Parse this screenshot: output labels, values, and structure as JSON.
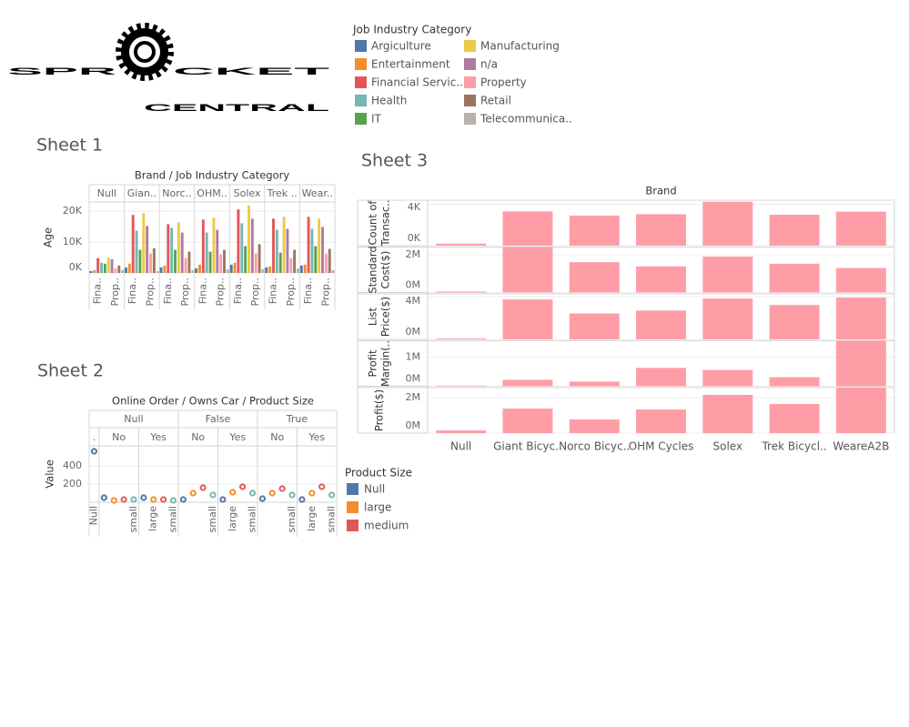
{
  "logo": {
    "left": "SPR",
    "right": "CKET",
    "bottom": "CENTRAL"
  },
  "chart_data": [
    {
      "type": "faceted_bar",
      "title": "Sheet 1",
      "header": "Brand / Job Industry Category",
      "facets": [
        "Null",
        "Gian..",
        "Norc..",
        "OHM..",
        "Solex",
        "Trek ..",
        "Wear.."
      ],
      "bar_labels": [
        null,
        null,
        "Fina..",
        null,
        null,
        null,
        null,
        "Prop..",
        null,
        null
      ],
      "ylabel": "Age",
      "ylim": [
        0,
        23000
      ],
      "yticks": [
        {
          "value": 0,
          "label": "0K"
        },
        {
          "value": 10000,
          "label": "10K"
        },
        {
          "value": 20000,
          "label": "20K"
        }
      ],
      "grid": true,
      "legend_title": "Job Industry Category",
      "series": [
        {
          "name": "Argiculture",
          "color": "#4e79a7",
          "values": [
            600,
            1800,
            1800,
            1500,
            2700,
            1800,
            2400
          ]
        },
        {
          "name": "Entertainment",
          "color": "#f28e2b",
          "values": [
            900,
            3000,
            2400,
            2700,
            3300,
            2100,
            2700
          ]
        },
        {
          "name": "Financial Servic..",
          "color": "#e15759",
          "values": [
            4800,
            18800,
            15800,
            17300,
            20600,
            17600,
            18200
          ]
        },
        {
          "name": "Health",
          "color": "#76b7b2",
          "values": [
            3300,
            13700,
            14600,
            13100,
            16100,
            14000,
            14300
          ]
        },
        {
          "name": "IT",
          "color": "#59a14f",
          "values": [
            3000,
            7500,
            7500,
            6900,
            8700,
            6600,
            8700
          ]
        },
        {
          "name": "Manufacturing",
          "color": "#edc948",
          "values": [
            5000,
            19400,
            16400,
            17900,
            21800,
            18200,
            17600
          ]
        },
        {
          "name": "n/a",
          "color": "#b07aa1",
          "values": [
            4500,
            15200,
            13100,
            14000,
            17600,
            14300,
            14900
          ]
        },
        {
          "name": "Property",
          "color": "#ff9da7",
          "values": [
            1500,
            6300,
            4800,
            6000,
            6300,
            4800,
            6300
          ]
        },
        {
          "name": "Retail",
          "color": "#9c755f",
          "values": [
            2400,
            8000,
            6900,
            7500,
            9300,
            7500,
            7800
          ]
        },
        {
          "name": "Telecommunica..",
          "color": "#bab0ac",
          "values": [
            1000,
            600,
            900,
            1200,
            1200,
            1500,
            900
          ]
        }
      ]
    },
    {
      "type": "dot",
      "title": "Sheet 2",
      "header": "Online Order / Owns Car / Product Size",
      "ylabel": "Value",
      "ylim": [
        0,
        620
      ],
      "yticks": [
        200,
        400
      ],
      "grid": true,
      "point_colors": [
        "#4e79a7",
        "#f28e2b",
        "#e15759",
        "#76b7b2"
      ],
      "legend_title": "Product Size",
      "legend": [
        "Null",
        "large",
        "medium"
      ],
      "groups": [
        {
          "name": "Null",
          "subgroups": [
            {
              "name": ".",
              "categories": [
                "Null"
              ],
              "values": [
                560
              ]
            },
            {
              "name": "No",
              "categories": [
                null,
                null,
                null,
                "small"
              ],
              "values": [
                50,
                20,
                30,
                30
              ]
            },
            {
              "name": "Yes",
              "categories": [
                null,
                "large",
                null,
                "small"
              ],
              "values": [
                50,
                30,
                30,
                20
              ]
            }
          ]
        },
        {
          "name": "False",
          "subgroups": [
            {
              "name": "No",
              "categories": [
                null,
                null,
                null,
                "small"
              ],
              "values": [
                30,
                100,
                160,
                80
              ]
            },
            {
              "name": "Yes",
              "categories": [
                null,
                "large",
                null,
                "small"
              ],
              "values": [
                30,
                110,
                170,
                100
              ]
            }
          ]
        },
        {
          "name": "True",
          "subgroups": [
            {
              "name": "No",
              "categories": [
                null,
                null,
                null,
                "small"
              ],
              "values": [
                40,
                100,
                150,
                80
              ]
            },
            {
              "name": "Yes",
              "categories": [
                null,
                "large",
                null,
                "small"
              ],
              "values": [
                30,
                100,
                170,
                80
              ]
            }
          ]
        }
      ]
    },
    {
      "type": "multi_bar",
      "title": "Sheet 3",
      "header": "Brand",
      "color": "#ff9da7",
      "grid": true,
      "categories": [
        "Null",
        "Giant Bicyc..",
        "Norco Bicyc..",
        "OHM Cycles",
        "Solex",
        "Trek Bicycl..",
        "WeareA2B"
      ],
      "rows": [
        {
          "label": [
            "Count of",
            "Transac.."
          ],
          "values": [
            197,
            3312,
            2910,
            3043,
            4253,
            2990,
            3295
          ],
          "ylim": [
            0,
            4400
          ],
          "yticks": [
            {
              "value": 0,
              "label": "0K"
            },
            {
              "value": 4000,
              "label": "4K"
            }
          ]
        },
        {
          "label": [
            "Standard",
            "Cost($)"
          ],
          "values": [
            50000,
            2400000,
            1600000,
            1380000,
            1900000,
            1520000,
            1290000
          ],
          "ylim": [
            0,
            2400000
          ],
          "yticks": [
            {
              "value": 0,
              "label": "0M"
            },
            {
              "value": 2000000,
              "label": "2M"
            }
          ]
        },
        {
          "label": [
            "List",
            "Price($)"
          ],
          "values": [
            90000,
            3740000,
            2430000,
            2700000,
            3830000,
            3220000,
            3910000
          ],
          "ylim": [
            0,
            4260000
          ],
          "yticks": [
            {
              "value": 0,
              "label": "0M"
            },
            {
              "value": 4000000,
              "label": "4M"
            }
          ]
        },
        {
          "label": [
            "Profit",
            "Margin(.."
          ],
          "values": [
            20000,
            220000,
            160000,
            630000,
            560000,
            310000,
            1560000
          ],
          "ylim": [
            0,
            1560000
          ],
          "yticks": [
            {
              "value": 0,
              "label": "0M"
            },
            {
              "value": 1000000,
              "label": "1M"
            }
          ]
        },
        {
          "label": [
            "Profit($)"
          ],
          "values": [
            150000,
            1380000,
            770000,
            1330000,
            2150000,
            1640000,
            2560000
          ],
          "ylim": [
            0,
            2560000
          ],
          "yticks": [
            {
              "value": 0,
              "label": "0M"
            },
            {
              "value": 2000000,
              "label": "2M"
            }
          ]
        }
      ]
    }
  ]
}
